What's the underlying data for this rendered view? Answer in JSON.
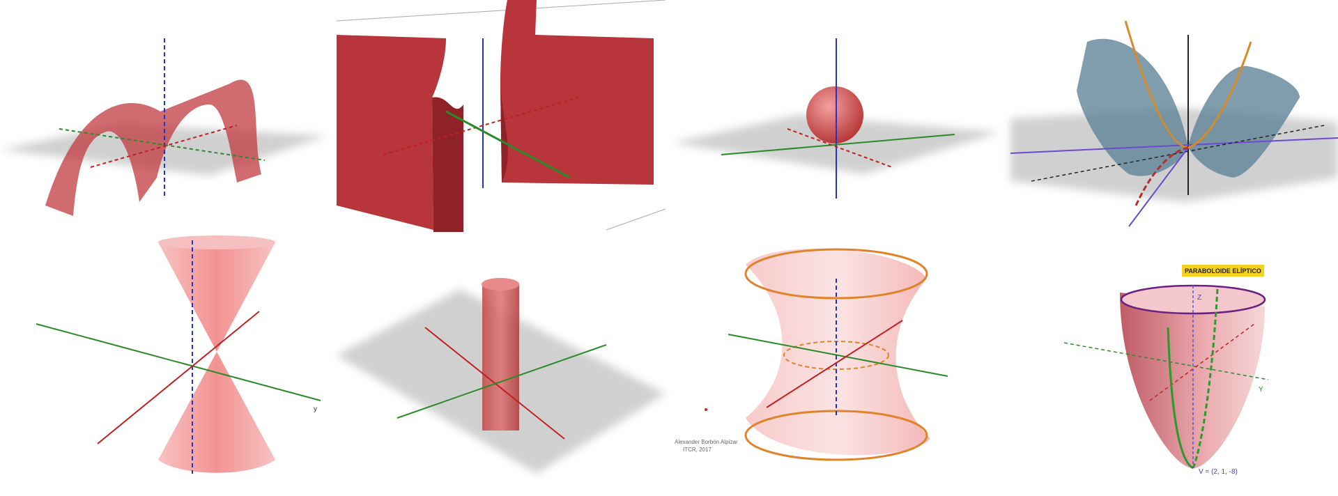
{
  "labels": {
    "paraboloid_title": "PARABOLOIDE ELÍPTICO",
    "vertex": "V = (2, 1, -8)",
    "author": "Alexander Borbón Alpízar",
    "credit": "ITCR, 2017",
    "axis_y": "y",
    "axis_Y": "Y",
    "axis_Z": "Z"
  }
}
